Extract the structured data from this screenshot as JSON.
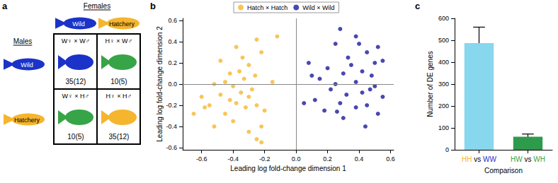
{
  "diagram": {
    "label": "a",
    "column_title": "Females",
    "row_title": "Males",
    "columns": [
      "Wild",
      "Hatchery"
    ],
    "rows": [
      "Wild",
      "Hatchery"
    ],
    "colors": {
      "Wild": "#1b33c8",
      "Hatchery": "#f5b52e",
      "hybrid": "#36a447"
    },
    "cells": [
      [
        {
          "cross": "W♀ × W♂",
          "count": "35(12)"
        },
        {
          "cross": "H♀ × W♂",
          "count": "10(5)"
        }
      ],
      [
        {
          "cross": "W♀ × H♂",
          "count": "10(5)"
        },
        {
          "cross": "H♀ × H♂",
          "count": "35(12)"
        }
      ]
    ]
  },
  "chart_data": [
    {
      "label": "b",
      "type": "scatter",
      "x_label": "Leading log fold-change dimension 1",
      "y_label": "Leading log fold-change dimension 2",
      "xlim": [
        -0.72,
        0.62
      ],
      "xticks": [
        -0.6,
        -0.4,
        -0.2,
        {
          "value": 0,
          "label": "0.0"
        },
        0.2,
        0.4,
        0.6
      ],
      "ylim": [
        -0.62,
        0.62
      ],
      "yticks": [
        -0.6,
        -0.4,
        -0.2,
        {
          "value": 0,
          "label": "0.0"
        },
        0.2,
        0.4,
        0.6
      ],
      "grid": false,
      "legend": "top",
      "ref_lines": {
        "x": [
          0
        ],
        "y": [
          0
        ]
      },
      "series": [
        {
          "name": "Hatch × Hatch",
          "color": "#f5b731",
          "x": [
            -0.12,
            -0.25,
            -0.38,
            -0.22,
            -0.48,
            -0.3,
            -0.36,
            -0.42,
            -0.26,
            -0.33,
            -0.45,
            -0.52,
            -0.4,
            -0.28,
            -0.35,
            -0.48,
            -0.3,
            -0.6,
            -0.42,
            -0.38,
            -0.55,
            -0.25,
            -0.32,
            -0.65,
            -0.45,
            -0.2,
            -0.4,
            -0.22,
            -0.52,
            -0.3,
            -0.25,
            -0.22,
            -0.58,
            -0.15,
            -0.34
          ],
          "values": [
            0.45,
            0.42,
            0.35,
            0.3,
            0.22,
            0.18,
            0.12,
            0.1,
            0.08,
            0.05,
            0.02,
            0.0,
            -0.02,
            -0.05,
            -0.08,
            -0.1,
            -0.12,
            -0.12,
            -0.15,
            -0.18,
            -0.2,
            -0.2,
            -0.22,
            -0.28,
            -0.28,
            -0.25,
            -0.35,
            -0.4,
            -0.4,
            -0.45,
            -0.52,
            -0.55,
            -0.22,
            0.02,
            0.25
          ]
        },
        {
          "name": "Wild × Wild",
          "color": "#1a1a9c",
          "x": [
            0.28,
            0.38,
            0.25,
            0.52,
            0.45,
            0.33,
            0.55,
            0.5,
            0.08,
            0.2,
            0.42,
            0.3,
            0.48,
            0.15,
            0.38,
            0.25,
            0.5,
            0.22,
            0.42,
            0.32,
            0.55,
            0.12,
            0.05,
            0.28,
            0.45,
            0.38,
            0.18,
            0.52,
            0.3,
            0.44,
            0.1,
            0.35,
            0.26,
            0.47,
            0.4
          ],
          "values": [
            0.52,
            0.45,
            0.38,
            0.35,
            0.3,
            0.25,
            0.22,
            0.2,
            0.2,
            0.15,
            0.12,
            0.1,
            0.08,
            0.05,
            0.02,
            0.0,
            -0.02,
            -0.05,
            -0.08,
            -0.1,
            -0.12,
            -0.15,
            -0.18,
            -0.18,
            -0.2,
            -0.22,
            -0.25,
            -0.28,
            -0.32,
            -0.4,
            0.08,
            0.18,
            -0.26,
            -0.05,
            0.38
          ]
        }
      ]
    },
    {
      "label": "c",
      "type": "bar",
      "x_label": "Comparison",
      "y_label": "Number of DE genes",
      "categories": [
        "HH vs WW",
        "HW vs WH"
      ],
      "values": [
        487,
        60
      ],
      "errors": [
        [
          415,
          560
        ],
        [
          50,
          72
        ]
      ],
      "colors": [
        "#87d7ee",
        "#2e9b4c"
      ],
      "ylim": [
        0,
        600
      ],
      "yticks": [
        0,
        100,
        200,
        300,
        400,
        500,
        600
      ],
      "grid": false
    }
  ]
}
